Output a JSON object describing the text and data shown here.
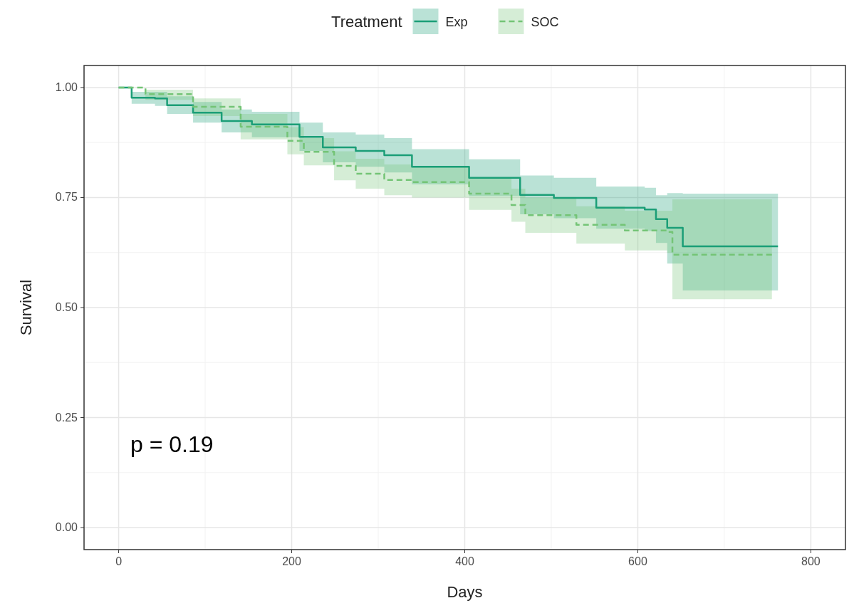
{
  "chart_data": {
    "type": "step",
    "xlabel": "Days",
    "ylabel": "Survival",
    "legend_title": "Treatment",
    "legend": "top",
    "grid": true,
    "xlim": [
      -40,
      840
    ],
    "xticks": [
      0,
      200,
      400,
      600,
      800
    ],
    "ylim": [
      -0.05,
      1.05
    ],
    "yticks": [
      {
        "value": 0,
        "label": "0.00"
      },
      {
        "value": 0.25,
        "label": "0.25"
      },
      {
        "value": 0.5,
        "label": "0.50"
      },
      {
        "value": 0.75,
        "label": "0.75"
      },
      {
        "value": 1,
        "label": "1.00"
      }
    ],
    "annotations": [
      "p = 0.19"
    ],
    "series": [
      {
        "name": "Exp",
        "color": "#1b9e77",
        "line_style": "solid",
        "x": [
          0,
          15,
          42,
          56,
          86,
          119,
          154,
          209,
          236,
          274,
          307,
          339,
          405,
          464,
          503,
          552,
          608,
          621,
          634,
          652,
          762
        ],
        "values": [
          1,
          0.977,
          0.975,
          0.96,
          0.943,
          0.924,
          0.916,
          0.888,
          0.864,
          0.856,
          0.846,
          0.82,
          0.795,
          0.756,
          0.749,
          0.727,
          0.723,
          0.701,
          0.681,
          0.639,
          0.639
        ],
        "upper": [
          1,
          0.99,
          0.99,
          0.98,
          0.967,
          0.95,
          0.945,
          0.92,
          0.898,
          0.893,
          0.885,
          0.86,
          0.837,
          0.8,
          0.795,
          0.775,
          0.772,
          0.755,
          0.76,
          0.759,
          0.759
        ],
        "lower": [
          1,
          0.963,
          0.958,
          0.94,
          0.92,
          0.898,
          0.887,
          0.856,
          0.83,
          0.82,
          0.807,
          0.78,
          0.753,
          0.712,
          0.703,
          0.679,
          0.674,
          0.647,
          0.6,
          0.539,
          0.539
        ]
      },
      {
        "name": "SOC",
        "color": "#74c476",
        "line_style": "dashed",
        "x": [
          0,
          31,
          86,
          141,
          195,
          214,
          249,
          274,
          307,
          339,
          405,
          454,
          470,
          529,
          585,
          634,
          640,
          755
        ],
        "values": [
          1,
          0.985,
          0.956,
          0.911,
          0.879,
          0.854,
          0.822,
          0.804,
          0.79,
          0.785,
          0.759,
          0.733,
          0.71,
          0.688,
          0.675,
          0.672,
          0.62,
          0.62
        ],
        "upper": [
          1,
          0.995,
          0.975,
          0.94,
          0.91,
          0.885,
          0.855,
          0.838,
          0.825,
          0.82,
          0.795,
          0.77,
          0.75,
          0.73,
          0.72,
          0.72,
          0.746,
          0.746
        ],
        "lower": [
          1,
          0.972,
          0.935,
          0.882,
          0.848,
          0.823,
          0.789,
          0.77,
          0.755,
          0.75,
          0.722,
          0.695,
          0.67,
          0.645,
          0.63,
          0.624,
          0.519,
          0.519
        ]
      }
    ]
  }
}
